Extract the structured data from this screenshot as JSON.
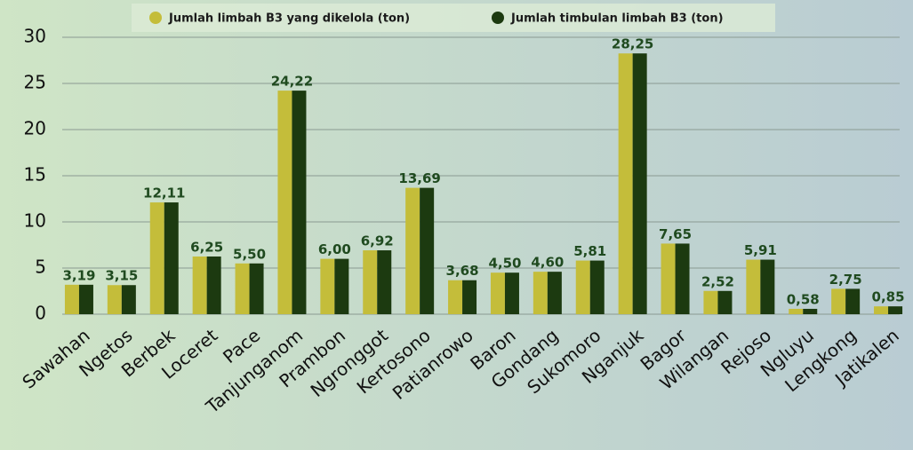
{
  "chart_data": {
    "type": "bar",
    "categories": [
      "Sawahan",
      "Ngetos",
      "Berbek",
      "Loceret",
      "Pace",
      "Tanjunganom",
      "Prambon",
      "Ngronggot",
      "Kertosono",
      "Patianrowo",
      "Baron",
      "Gondang",
      "Sukomoro",
      "Nganjuk",
      "Bagor",
      "Wilangan",
      "Rejoso",
      "Ngluyu",
      "Lengkong",
      "Jatikalen"
    ],
    "series": [
      {
        "name": "Jumlah limbah B3 yang dikelola (ton)",
        "color": "#c4bd3a",
        "values": [
          3.19,
          3.15,
          12.11,
          6.25,
          5.5,
          24.22,
          6.0,
          6.92,
          13.69,
          3.68,
          4.5,
          4.6,
          5.81,
          28.25,
          7.65,
          2.52,
          5.91,
          0.58,
          2.75,
          0.85
        ],
        "value_labels": [
          "3,19",
          "3,15",
          "12,11",
          "6,25",
          "5,50",
          "24,22",
          "6,00",
          "6,92",
          "13,69",
          "3,68",
          "4,50",
          "4,60",
          "5,81",
          "28,25",
          "7,65",
          "2,52",
          "5,91",
          "0,58",
          "2,75",
          "0,85"
        ]
      },
      {
        "name": "Jumlah timbulan limbah B3 (ton)",
        "color": "#1c3a10",
        "values": [
          3.19,
          3.15,
          12.11,
          6.25,
          5.5,
          24.22,
          6.0,
          6.92,
          13.69,
          3.68,
          4.5,
          4.6,
          5.81,
          28.25,
          7.65,
          2.52,
          5.91,
          0.58,
          2.75,
          0.85
        ]
      }
    ],
    "ylim": [
      0,
      30
    ],
    "yticks": [
      0,
      5,
      10,
      15,
      20,
      25,
      30
    ],
    "grid": true,
    "legend": "top"
  }
}
